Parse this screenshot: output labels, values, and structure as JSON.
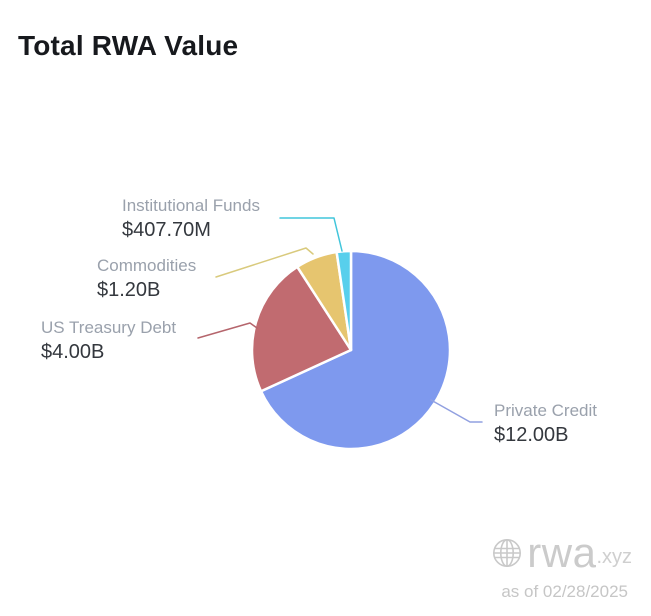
{
  "title": "Total RWA Value",
  "chart_data": {
    "type": "pie",
    "title": "Total RWA Value",
    "start_angle_deg": 0,
    "direction": "clockwise",
    "legend_position": "none",
    "value_unit": "USD billions",
    "slices": [
      {
        "id": "private-credit",
        "label": "Private Credit",
        "value_text": "$12.00B",
        "value": 12.0,
        "color": "#7e99ee",
        "line_color": "#91a0e0"
      },
      {
        "id": "us-treasury-debt",
        "label": "US Treasury Debt",
        "value_text": "$4.00B",
        "value": 4.0,
        "color": "#c16b70",
        "line_color": "#b5656c"
      },
      {
        "id": "commodities",
        "label": "Commodities",
        "value_text": "$1.20B",
        "value": 1.2,
        "color": "#e6c56f",
        "line_color": "#d9ca7d"
      },
      {
        "id": "institutional-funds",
        "label": "Institutional Funds",
        "value_text": "$407.70M",
        "value": 0.4077,
        "color": "#58cfec",
        "line_color": "#41c5db"
      }
    ]
  },
  "watermark": {
    "brand": "rwa",
    "brand_suffix": ".xyz",
    "as_of": "as of 02/28/2025"
  }
}
